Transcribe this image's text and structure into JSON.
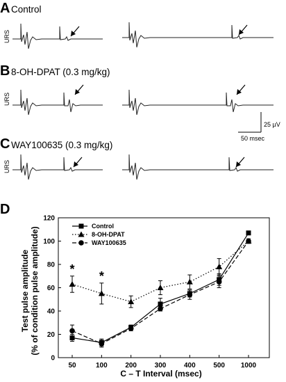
{
  "panels": {
    "A": {
      "letter": "A",
      "label": "Control"
    },
    "B": {
      "letter": "B",
      "label": "8-OH-DPAT (0.3 mg/kg)"
    },
    "C": {
      "letter": "C",
      "label": "WAY100635 (0.3 mg/kg)"
    },
    "D": {
      "letter": "D"
    }
  },
  "trace_ylabel": "URS",
  "scale_bar": {
    "amplitude": "25 µV",
    "time": "50 msec"
  },
  "chart_data": {
    "type": "line",
    "xlabel": "C – T Interval (msec)",
    "ylabel_line1": "Test pulse amplitude",
    "ylabel_line2": "(% of condition pulse amplitude)",
    "categories": [
      "50",
      "100",
      "200",
      "300",
      "400",
      "500",
      "1000"
    ],
    "ylim": [
      0,
      120
    ],
    "yticks": [
      "0",
      "20",
      "40",
      "60",
      "80",
      "100",
      "120"
    ],
    "series": [
      {
        "name": "Control",
        "marker": "square",
        "dash": "solid",
        "values": [
          17,
          13,
          26,
          46,
          55,
          67,
          107
        ],
        "errors": [
          3,
          3,
          2,
          5,
          3,
          5,
          1
        ]
      },
      {
        "name": "8-OH-DPAT",
        "marker": "triangle",
        "dash": "dotted",
        "values": [
          63,
          55,
          48,
          60,
          65,
          78,
          100
        ],
        "errors": [
          7,
          9,
          5,
          6,
          6,
          7,
          2
        ]
      },
      {
        "name": "WAY100635",
        "marker": "circle",
        "dash": "dashed",
        "values": [
          23,
          12,
          25,
          42,
          54,
          65,
          100
        ],
        "errors": [
          5,
          3,
          2,
          2,
          4,
          5,
          1
        ]
      }
    ],
    "significance": [
      {
        "category": "50",
        "mark": "*"
      },
      {
        "category": "100",
        "mark": "*"
      }
    ]
  }
}
